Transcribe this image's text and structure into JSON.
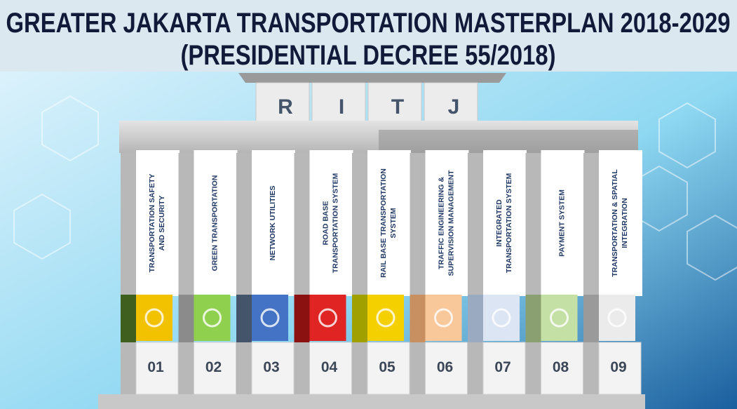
{
  "header": {
    "title_lines": [
      "GREATER JAKARTA TRANSPORTATION MASTERPLAN 2018-2029",
      "(PRESIDENTIAL DECREE 55/2018)"
    ]
  },
  "roof": {
    "letters": [
      "R",
      "I",
      "T",
      "J"
    ]
  },
  "pillars": [
    {
      "lines": [
        "TRANSPORTATION SAFETY",
        "AND SECURITY"
      ],
      "number": "01"
    },
    {
      "lines": [
        "GREEN TRANSPORTATION"
      ],
      "number": "02"
    },
    {
      "lines": [
        "NETWORK  UTILITIES"
      ],
      "number": "03"
    },
    {
      "lines": [
        "ROAD BASE",
        "TRANSPORTATION SYSTEM"
      ],
      "number": "04"
    },
    {
      "lines": [
        "RAIL BASE TRANSPORTATION",
        "SYSTEM"
      ],
      "number": "05"
    },
    {
      "lines": [
        "TRAFFIC ENGINEERING &",
        "SUPERVISION MANAGEMENT"
      ],
      "number": "06"
    },
    {
      "lines": [
        "INTEGRATED",
        "TRANSPORTATION SYSTEM"
      ],
      "number": "07"
    },
    {
      "lines": [
        "PAYMENT  SYSTEM"
      ],
      "number": "08"
    },
    {
      "lines": [
        "TRANSPORTATION & SPATIAL",
        "INTEGRATION"
      ],
      "number": "09"
    }
  ]
}
